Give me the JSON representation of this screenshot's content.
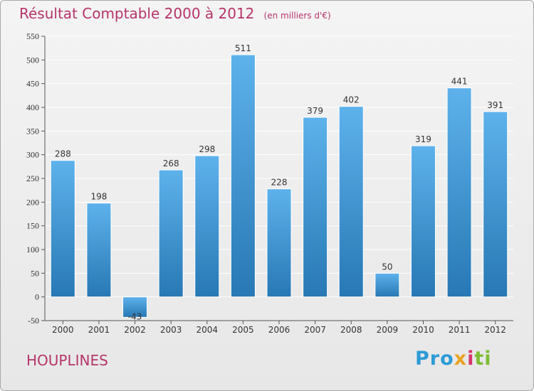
{
  "header": {
    "title": "Résultat Comptable 2000 à 2012",
    "unit": "(en milliers d'€)"
  },
  "footer": {
    "place": "HOUPLINES",
    "logo": "Proxiti"
  },
  "colors": {
    "title": "#b5356a",
    "bar_top": "#5eb2ec",
    "bar_bottom": "#2778b4",
    "grid": "#ffffff",
    "text": "#333333"
  },
  "chart_data": {
    "type": "bar",
    "title": "Résultat Comptable 2000 à 2012",
    "xlabel": "",
    "ylabel": "",
    "categories": [
      "2000",
      "2001",
      "2002",
      "2003",
      "2004",
      "2005",
      "2006",
      "2007",
      "2008",
      "2009",
      "2010",
      "2011",
      "2012"
    ],
    "values": [
      288,
      198,
      -43,
      268,
      298,
      511,
      228,
      379,
      402,
      50,
      319,
      441,
      391
    ],
    "ylim": [
      -50,
      550
    ],
    "yticks": [
      -50,
      0,
      50,
      100,
      150,
      200,
      250,
      300,
      350,
      400,
      450,
      500,
      550
    ],
    "grid": true,
    "legend": "none"
  }
}
